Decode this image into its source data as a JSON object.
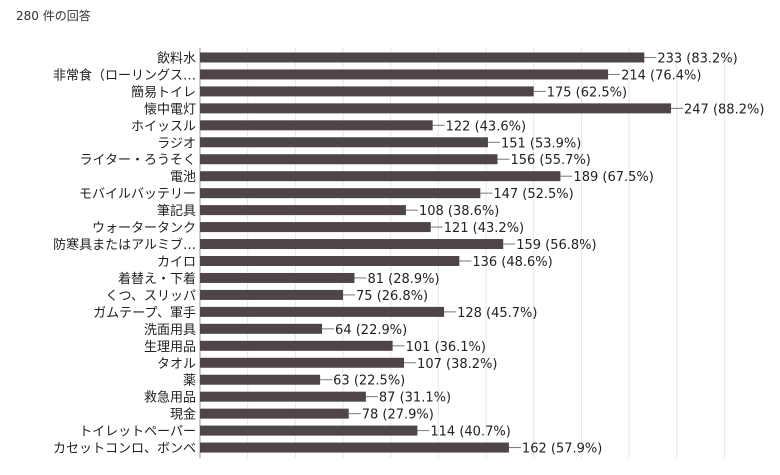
{
  "header": {
    "response_count": "280 件の回答"
  },
  "colors": {
    "bar": "#4e4646",
    "grid": "#e6e6e6",
    "axis": "#999999",
    "text": "#222222",
    "connector": "#777777"
  },
  "chart_data": {
    "type": "bar",
    "orientation": "horizontal",
    "title": "",
    "xlabel": "",
    "ylabel": "",
    "grid": true,
    "xlim": [
      0,
      280
    ],
    "categories": [
      "飲料水",
      "非常食（ローリングス…",
      "簡易トイレ",
      "懐中電灯",
      "ホイッスル",
      "ラジオ",
      "ライター・ろうそく",
      "電池",
      "モバイルバッテリー",
      "筆記具",
      "ウォータータンク",
      "防寒具またはアルミブ…",
      "カイロ",
      "着替え・下着",
      "くつ、スリッパ",
      "ガムテープ、軍手",
      "洗面用具",
      "生理用品",
      "タオル",
      "薬",
      "救急用品",
      "現金",
      "トイレットペーパー",
      "カセットコンロ、ボンベ"
    ],
    "values": [
      233,
      214,
      175,
      247,
      122,
      151,
      156,
      189,
      147,
      108,
      121,
      159,
      136,
      81,
      75,
      128,
      64,
      101,
      107,
      63,
      87,
      78,
      114,
      162
    ],
    "value_labels": [
      "233 (83.2%)",
      "214 (76.4%)",
      "175 (62.5%)",
      "247 (88.2%)",
      "122 (43.6%)",
      "151 (53.9%)",
      "156 (55.7%)",
      "189 (67.5%)",
      "147 (52.5%)",
      "108 (38.6%)",
      "121 (43.2%)",
      "159 (56.8%)",
      "136 (48.6%)",
      "81 (28.9%)",
      "75 (26.8%)",
      "128 (45.7%)",
      "64 (22.9%)",
      "101 (36.1%)",
      "107 (38.2%)",
      "63 (22.5%)",
      "87 (31.1%)",
      "78 (27.9%)",
      "114 (40.7%)",
      "162 (57.9%)"
    ]
  }
}
